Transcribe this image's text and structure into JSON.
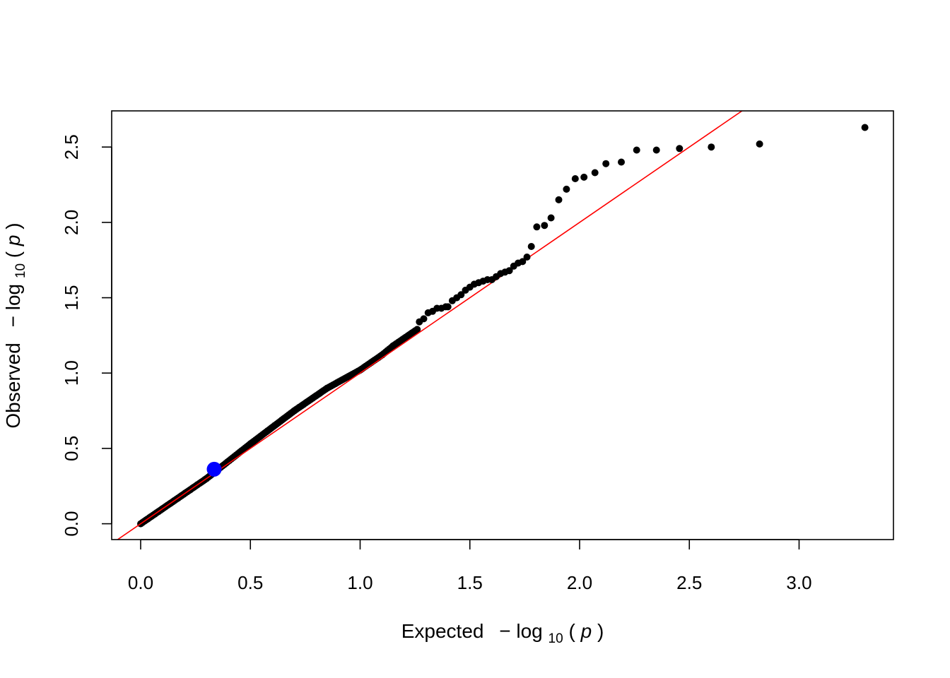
{
  "chart_data": {
    "type": "scatter",
    "title": "",
    "xlabel": {
      "prefix": "Expected",
      "minus": "−",
      "log": "log",
      "sub": "10",
      "open": "(",
      "var": "p",
      "close": ")"
    },
    "ylabel": {
      "prefix": "Observed",
      "minus": "−",
      "log": "log",
      "sub": "10",
      "open": "(",
      "var": "p",
      "close": ")"
    },
    "xlim": [
      -0.132,
      3.43
    ],
    "ylim": [
      -0.105,
      2.74
    ],
    "x_ticks": [
      0.0,
      0.5,
      1.0,
      1.5,
      2.0,
      2.5,
      3.0
    ],
    "x_tick_labels": [
      "0.0",
      "0.5",
      "1.0",
      "1.5",
      "2.0",
      "2.5",
      "3.0"
    ],
    "y_ticks": [
      0.0,
      0.5,
      1.0,
      1.5,
      2.0,
      2.5
    ],
    "y_tick_labels": [
      "0.0",
      "0.5",
      "1.0",
      "1.5",
      "2.0",
      "2.5"
    ],
    "grid": false,
    "reference_line": {
      "intercept": 0,
      "slope": 1,
      "color": "#ff0000"
    },
    "highlight_point": {
      "x": 0.335,
      "y": 0.362,
      "color": "#0000ff"
    },
    "point_color": "#000000",
    "dense_segments": [
      {
        "x0": 0.0,
        "y0": 0.0,
        "x1": 0.3,
        "y1": 0.3
      },
      {
        "x0": 0.3,
        "y0": 0.3,
        "x1": 0.5,
        "y1": 0.53
      },
      {
        "x0": 0.5,
        "y0": 0.53,
        "x1": 0.7,
        "y1": 0.75
      },
      {
        "x0": 0.7,
        "y0": 0.75,
        "x1": 0.85,
        "y1": 0.9
      },
      {
        "x0": 0.85,
        "y0": 0.9,
        "x1": 1.0,
        "y1": 1.02
      },
      {
        "x0": 1.0,
        "y0": 1.02,
        "x1": 1.1,
        "y1": 1.12
      },
      {
        "x0": 1.1,
        "y0": 1.12,
        "x1": 1.15,
        "y1": 1.18
      },
      {
        "x0": 1.15,
        "y0": 1.18,
        "x1": 1.26,
        "y1": 1.29
      }
    ],
    "points": [
      [
        1.27,
        1.34
      ],
      [
        1.29,
        1.36
      ],
      [
        1.31,
        1.4
      ],
      [
        1.33,
        1.41
      ],
      [
        1.35,
        1.43
      ],
      [
        1.37,
        1.43
      ],
      [
        1.39,
        1.44
      ],
      [
        1.4,
        1.44
      ],
      [
        1.42,
        1.48
      ],
      [
        1.44,
        1.5
      ],
      [
        1.46,
        1.52
      ],
      [
        1.48,
        1.55
      ],
      [
        1.5,
        1.57
      ],
      [
        1.52,
        1.59
      ],
      [
        1.54,
        1.6
      ],
      [
        1.56,
        1.61
      ],
      [
        1.58,
        1.62
      ],
      [
        1.6,
        1.62
      ],
      [
        1.62,
        1.64
      ],
      [
        1.64,
        1.66
      ],
      [
        1.66,
        1.67
      ],
      [
        1.68,
        1.68
      ],
      [
        1.7,
        1.71
      ],
      [
        1.72,
        1.73
      ],
      [
        1.74,
        1.74
      ],
      [
        1.76,
        1.77
      ],
      [
        1.78,
        1.84
      ],
      [
        1.805,
        1.97
      ],
      [
        1.84,
        1.98
      ],
      [
        1.87,
        2.03
      ],
      [
        1.905,
        2.15
      ],
      [
        1.94,
        2.22
      ],
      [
        1.98,
        2.29
      ],
      [
        2.02,
        2.3
      ],
      [
        2.07,
        2.33
      ],
      [
        2.12,
        2.39
      ],
      [
        2.19,
        2.4
      ],
      [
        2.26,
        2.48
      ],
      [
        2.35,
        2.48
      ],
      [
        2.455,
        2.49
      ],
      [
        2.6,
        2.5
      ],
      [
        2.82,
        2.52
      ],
      [
        3.3,
        2.63
      ]
    ]
  }
}
